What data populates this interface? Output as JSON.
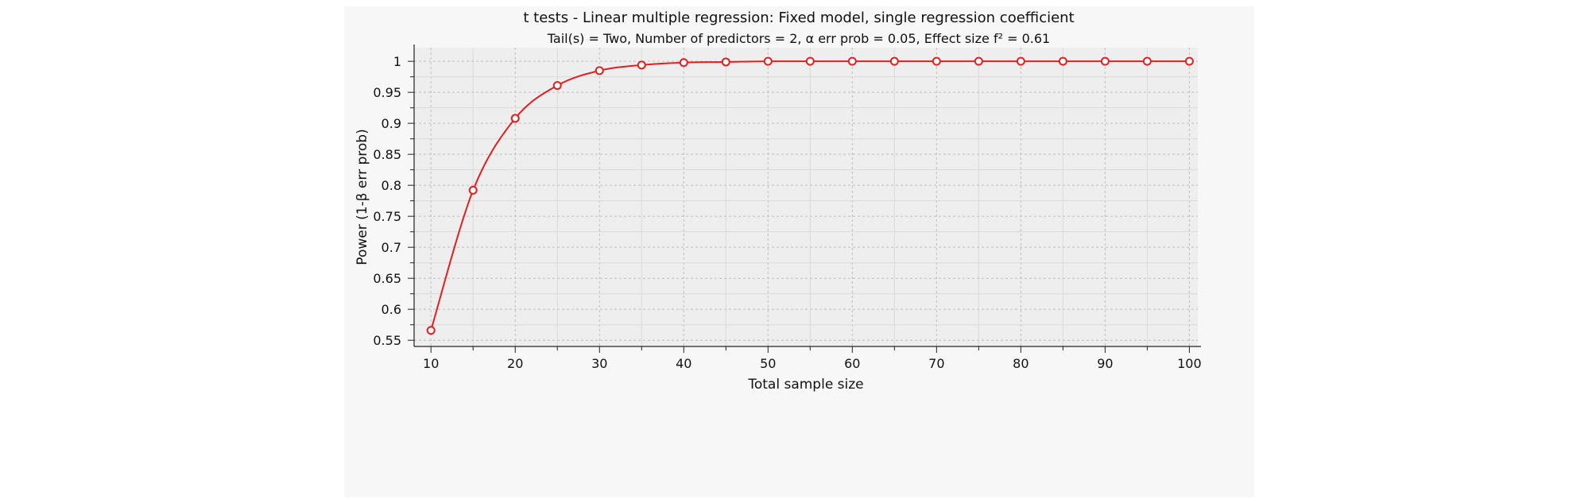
{
  "chart_data": {
    "type": "line",
    "title": "t tests - Linear multiple regression: Fixed model, single regression coefficient",
    "subtitle": "Tail(s) = Two, Number of predictors = 2, α err prob = 0.05, Effect size f² = 0.61",
    "xlabel": "Total sample size",
    "ylabel": "Power (1-β err prob)",
    "xlim": [
      8,
      101
    ],
    "ylim": [
      0.54,
      1.022
    ],
    "x_ticks": [
      10,
      20,
      30,
      40,
      50,
      60,
      70,
      80,
      90,
      100
    ],
    "y_ticks": [
      0.55,
      0.6,
      0.65,
      0.7,
      0.75,
      0.8,
      0.85,
      0.9,
      0.95,
      1
    ],
    "y_tick_labels": [
      "0.55",
      "0.6",
      "0.65",
      "0.7",
      "0.75",
      "0.8",
      "0.85",
      "0.9",
      "0.95",
      "1"
    ],
    "grid": true,
    "series": [
      {
        "color": "#e02020",
        "x": [
          10,
          15,
          20,
          25,
          30,
          35,
          40,
          45,
          50,
          55,
          60,
          65,
          70,
          75,
          80,
          85,
          90,
          95,
          100
        ],
        "values": [
          0.566,
          0.792,
          0.908,
          0.961,
          0.985,
          0.994,
          0.998,
          0.999,
          1.0,
          1.0,
          1.0,
          1.0,
          1.0,
          1.0,
          1.0,
          1.0,
          1.0,
          1.0,
          1.0
        ]
      }
    ]
  }
}
